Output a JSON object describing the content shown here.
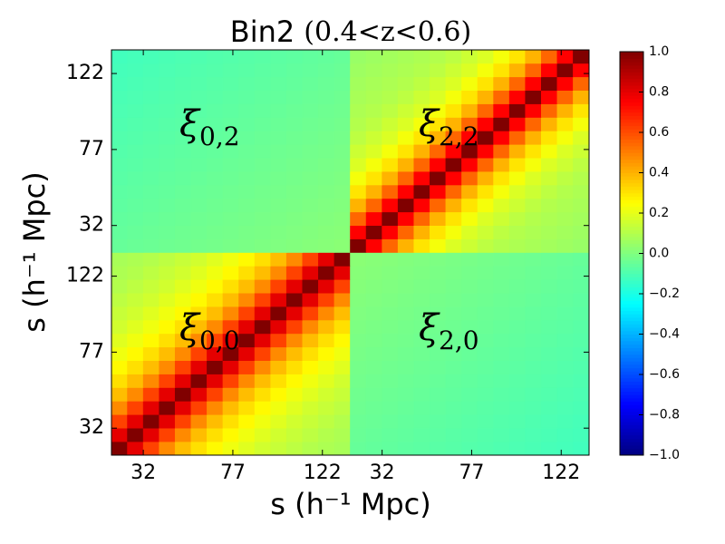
{
  "chart_data": {
    "type": "heatmap",
    "title": "Bin2",
    "title_math": "(0.4<z<0.6)",
    "xlabel": "s (h⁻¹ Mpc)",
    "ylabel": "s (h⁻¹ Mpc)",
    "cmap": "jet",
    "clim": [
      -1,
      1
    ],
    "xlim": [
      16,
      256
    ],
    "ylim": [
      16,
      256
    ],
    "xbins": [
      16,
      24,
      32,
      40,
      48,
      56,
      64,
      72,
      80,
      88,
      96,
      104,
      112,
      120,
      128,
      136,
      144,
      152,
      160,
      168,
      176,
      184,
      192,
      200,
      208,
      216,
      224,
      232,
      240,
      248,
      256
    ],
    "ybins": [
      16,
      24,
      32,
      40,
      48,
      56,
      64,
      72,
      80,
      88,
      96,
      104,
      112,
      120,
      128,
      136,
      144,
      152,
      160,
      168,
      176,
      184,
      192,
      200,
      208,
      216,
      224,
      232,
      240,
      248,
      256
    ],
    "xticks": [
      32,
      77,
      122,
      {
        "value": 152,
        "label": "32"
      },
      {
        "value": 197,
        "label": "77"
      },
      {
        "value": 242,
        "label": "122"
      }
    ],
    "yticks": [
      32,
      77,
      122,
      {
        "value": 152,
        "label": "32"
      },
      {
        "value": 197,
        "label": "77"
      },
      {
        "value": 242,
        "label": "122"
      }
    ],
    "colorbar_ticks": [
      {
        "value": 1,
        "label": "1.0"
      },
      {
        "value": 0.8,
        "label": "0.8"
      },
      {
        "value": 0.6,
        "label": "0.6"
      },
      {
        "value": 0.4,
        "label": "0.4"
      },
      {
        "value": 0.2,
        "label": "0.2"
      },
      {
        "value": 0,
        "label": "0.0"
      },
      {
        "value": -0.2,
        "label": "−0.2"
      },
      {
        "value": -0.4,
        "label": "−0.4"
      },
      {
        "value": -0.6,
        "label": "−0.6"
      },
      {
        "value": -0.8,
        "label": "−0.8"
      },
      {
        "value": -1,
        "label": "−1.0"
      }
    ],
    "annotations": [
      {
        "symbol": "ξ",
        "subscript": "0,2"
      },
      {
        "symbol": "ξ",
        "subscript": "2,2"
      },
      {
        "symbol": "ξ",
        "subscript": "0,0"
      },
      {
        "symbol": "ξ",
        "subscript": "2,0"
      }
    ],
    "z": [
      [
        1,
        0.8,
        0.62,
        0.48,
        0.38,
        0.31,
        0.26,
        0.22,
        0.19,
        0.16,
        0.14,
        0.12,
        0.1,
        0.09,
        0.08,
        -0.05,
        -0.055,
        -0.06,
        -0.065,
        -0.07,
        -0.075,
        -0.08,
        -0.085,
        -0.09,
        -0.095,
        -0.1,
        -0.105,
        -0.11,
        -0.115,
        -0.12
      ],
      [
        0.8,
        1,
        0.8,
        0.62,
        0.48,
        0.38,
        0.31,
        0.26,
        0.22,
        0.19,
        0.16,
        0.14,
        0.12,
        0.1,
        0.09,
        -0.045,
        -0.05,
        -0.055,
        -0.06,
        -0.065,
        -0.07,
        -0.075,
        -0.08,
        -0.085,
        -0.09,
        -0.095,
        -0.1,
        -0.105,
        -0.11,
        -0.115
      ],
      [
        0.62,
        0.8,
        1,
        0.8,
        0.62,
        0.48,
        0.38,
        0.31,
        0.26,
        0.22,
        0.19,
        0.16,
        0.14,
        0.12,
        0.1,
        -0.04,
        -0.045,
        -0.05,
        -0.055,
        -0.06,
        -0.065,
        -0.07,
        -0.075,
        -0.08,
        -0.085,
        -0.09,
        -0.095,
        -0.1,
        -0.105,
        -0.11
      ],
      [
        0.48,
        0.62,
        0.8,
        1,
        0.8,
        0.62,
        0.48,
        0.38,
        0.31,
        0.26,
        0.22,
        0.19,
        0.16,
        0.14,
        0.12,
        -0.035,
        -0.04,
        -0.045,
        -0.05,
        -0.055,
        -0.06,
        -0.065,
        -0.07,
        -0.075,
        -0.08,
        -0.085,
        -0.09,
        -0.095,
        -0.1,
        -0.105
      ],
      [
        0.38,
        0.48,
        0.62,
        0.8,
        1,
        0.8,
        0.62,
        0.48,
        0.38,
        0.31,
        0.26,
        0.22,
        0.19,
        0.16,
        0.14,
        -0.03,
        -0.035,
        -0.04,
        -0.045,
        -0.05,
        -0.055,
        -0.06,
        -0.065,
        -0.07,
        -0.075,
        -0.08,
        -0.085,
        -0.09,
        -0.095,
        -0.1
      ],
      [
        0.31,
        0.38,
        0.48,
        0.62,
        0.8,
        1,
        0.8,
        0.62,
        0.48,
        0.38,
        0.31,
        0.26,
        0.22,
        0.19,
        0.16,
        -0.025,
        -0.03,
        -0.035,
        -0.04,
        -0.045,
        -0.05,
        -0.055,
        -0.06,
        -0.065,
        -0.07,
        -0.075,
        -0.08,
        -0.085,
        -0.09,
        -0.095
      ],
      [
        0.26,
        0.31,
        0.38,
        0.48,
        0.62,
        0.8,
        1,
        0.8,
        0.62,
        0.48,
        0.38,
        0.31,
        0.26,
        0.22,
        0.19,
        -0.02,
        -0.025,
        -0.03,
        -0.035,
        -0.04,
        -0.045,
        -0.05,
        -0.055,
        -0.06,
        -0.065,
        -0.07,
        -0.075,
        -0.08,
        -0.085,
        -0.09
      ],
      [
        0.22,
        0.26,
        0.31,
        0.38,
        0.48,
        0.62,
        0.8,
        1,
        0.8,
        0.62,
        0.48,
        0.38,
        0.31,
        0.26,
        0.22,
        -0.015,
        -0.02,
        -0.025,
        -0.03,
        -0.035,
        -0.04,
        -0.045,
        -0.05,
        -0.055,
        -0.06,
        -0.065,
        -0.07,
        -0.075,
        -0.08,
        -0.085
      ],
      [
        0.19,
        0.22,
        0.26,
        0.31,
        0.38,
        0.48,
        0.62,
        0.8,
        1,
        0.8,
        0.62,
        0.48,
        0.38,
        0.31,
        0.26,
        -0.01,
        -0.015,
        -0.02,
        -0.025,
        -0.03,
        -0.035,
        -0.04,
        -0.045,
        -0.05,
        -0.055,
        -0.06,
        -0.065,
        -0.07,
        -0.075,
        -0.08
      ],
      [
        0.16,
        0.19,
        0.22,
        0.26,
        0.31,
        0.38,
        0.48,
        0.62,
        0.8,
        1,
        0.8,
        0.62,
        0.48,
        0.38,
        0.31,
        -0.005,
        -0.01,
        -0.015,
        -0.02,
        -0.025,
        -0.03,
        -0.035,
        -0.04,
        -0.045,
        -0.05,
        -0.055,
        -0.06,
        -0.065,
        -0.07,
        -0.075
      ],
      [
        0.14,
        0.16,
        0.19,
        0.22,
        0.26,
        0.31,
        0.38,
        0.48,
        0.62,
        0.8,
        1,
        0.8,
        0.62,
        0.48,
        0.38,
        0,
        -0.005,
        -0.01,
        -0.015,
        -0.02,
        -0.025,
        -0.03,
        -0.035,
        -0.04,
        -0.045,
        -0.05,
        -0.055,
        -0.06,
        -0.065,
        -0.07
      ],
      [
        0.12,
        0.14,
        0.16,
        0.19,
        0.22,
        0.26,
        0.31,
        0.38,
        0.48,
        0.62,
        0.8,
        1,
        0.8,
        0.62,
        0.48,
        0.005,
        0,
        -0.005,
        -0.01,
        -0.015,
        -0.02,
        -0.025,
        -0.03,
        -0.035,
        -0.04,
        -0.045,
        -0.05,
        -0.055,
        -0.06,
        -0.065
      ],
      [
        0.1,
        0.12,
        0.14,
        0.16,
        0.19,
        0.22,
        0.26,
        0.31,
        0.38,
        0.48,
        0.62,
        0.8,
        1,
        0.8,
        0.62,
        0.01,
        0.005,
        0,
        -0.005,
        -0.01,
        -0.015,
        -0.02,
        -0.025,
        -0.03,
        -0.035,
        -0.04,
        -0.045,
        -0.05,
        -0.055,
        -0.06
      ],
      [
        0.09,
        0.1,
        0.12,
        0.14,
        0.16,
        0.19,
        0.22,
        0.26,
        0.31,
        0.38,
        0.48,
        0.62,
        0.8,
        1,
        0.8,
        0.015,
        0.01,
        0.005,
        0,
        -0.005,
        -0.01,
        -0.015,
        -0.02,
        -0.025,
        -0.03,
        -0.035,
        -0.04,
        -0.045,
        -0.05,
        -0.055
      ],
      [
        0.08,
        0.09,
        0.1,
        0.12,
        0.14,
        0.16,
        0.19,
        0.22,
        0.26,
        0.31,
        0.38,
        0.48,
        0.62,
        0.8,
        1,
        0.02,
        0.015,
        0.01,
        0.005,
        0,
        -0.005,
        -0.01,
        -0.015,
        -0.02,
        -0.025,
        -0.03,
        -0.035,
        -0.04,
        -0.045,
        -0.05
      ],
      [
        -0.05,
        -0.045,
        -0.04,
        -0.035,
        -0.03,
        -0.025,
        -0.02,
        -0.015,
        -0.01,
        -0.005,
        0,
        0.005,
        0.01,
        0.015,
        0.02,
        1,
        0.75,
        0.55,
        0.4,
        0.3,
        0.23,
        0.18,
        0.15,
        0.12,
        0.1,
        0.09,
        0.08,
        0.07,
        0.06,
        0.05
      ],
      [
        -0.055,
        -0.05,
        -0.045,
        -0.04,
        -0.035,
        -0.03,
        -0.025,
        -0.02,
        -0.015,
        -0.01,
        -0.005,
        0,
        0.005,
        0.01,
        0.015,
        0.75,
        1,
        0.75,
        0.55,
        0.4,
        0.3,
        0.23,
        0.18,
        0.15,
        0.12,
        0.1,
        0.09,
        0.08,
        0.07,
        0.06
      ],
      [
        -0.06,
        -0.055,
        -0.05,
        -0.045,
        -0.04,
        -0.035,
        -0.03,
        -0.025,
        -0.02,
        -0.015,
        -0.01,
        -0.005,
        0,
        0.005,
        0.01,
        0.55,
        0.75,
        1,
        0.75,
        0.55,
        0.4,
        0.3,
        0.23,
        0.18,
        0.15,
        0.12,
        0.1,
        0.09,
        0.08,
        0.07
      ],
      [
        -0.065,
        -0.06,
        -0.055,
        -0.05,
        -0.045,
        -0.04,
        -0.035,
        -0.03,
        -0.025,
        -0.02,
        -0.015,
        -0.01,
        -0.005,
        0,
        0.005,
        0.4,
        0.55,
        0.75,
        1,
        0.75,
        0.55,
        0.4,
        0.3,
        0.23,
        0.18,
        0.15,
        0.12,
        0.1,
        0.09,
        0.08
      ],
      [
        -0.07,
        -0.065,
        -0.06,
        -0.055,
        -0.05,
        -0.045,
        -0.04,
        -0.035,
        -0.03,
        -0.025,
        -0.02,
        -0.015,
        -0.01,
        -0.005,
        0,
        0.3,
        0.4,
        0.55,
        0.75,
        1,
        0.75,
        0.55,
        0.4,
        0.3,
        0.23,
        0.18,
        0.15,
        0.12,
        0.1,
        0.09
      ],
      [
        -0.075,
        -0.07,
        -0.065,
        -0.06,
        -0.055,
        -0.05,
        -0.045,
        -0.04,
        -0.035,
        -0.03,
        -0.025,
        -0.02,
        -0.015,
        -0.01,
        -0.005,
        0.23,
        0.3,
        0.4,
        0.55,
        0.75,
        1,
        0.75,
        0.55,
        0.4,
        0.3,
        0.23,
        0.18,
        0.15,
        0.12,
        0.1
      ],
      [
        -0.08,
        -0.075,
        -0.07,
        -0.065,
        -0.06,
        -0.055,
        -0.05,
        -0.045,
        -0.04,
        -0.035,
        -0.03,
        -0.025,
        -0.02,
        -0.015,
        -0.01,
        0.18,
        0.23,
        0.3,
        0.4,
        0.55,
        0.75,
        1,
        0.75,
        0.55,
        0.4,
        0.3,
        0.23,
        0.18,
        0.15,
        0.12
      ],
      [
        -0.085,
        -0.08,
        -0.075,
        -0.07,
        -0.065,
        -0.06,
        -0.055,
        -0.05,
        -0.045,
        -0.04,
        -0.035,
        -0.03,
        -0.025,
        -0.02,
        -0.015,
        0.15,
        0.18,
        0.23,
        0.3,
        0.4,
        0.55,
        0.75,
        1,
        0.75,
        0.55,
        0.4,
        0.3,
        0.23,
        0.18,
        0.15
      ],
      [
        -0.09,
        -0.085,
        -0.08,
        -0.075,
        -0.07,
        -0.065,
        -0.06,
        -0.055,
        -0.05,
        -0.045,
        -0.04,
        -0.035,
        -0.03,
        -0.025,
        -0.02,
        0.12,
        0.15,
        0.18,
        0.23,
        0.3,
        0.4,
        0.55,
        0.75,
        1,
        0.75,
        0.55,
        0.4,
        0.3,
        0.23,
        0.18
      ],
      [
        -0.095,
        -0.09,
        -0.085,
        -0.08,
        -0.075,
        -0.07,
        -0.065,
        -0.06,
        -0.055,
        -0.05,
        -0.045,
        -0.04,
        -0.035,
        -0.03,
        -0.025,
        0.1,
        0.12,
        0.15,
        0.18,
        0.23,
        0.3,
        0.4,
        0.55,
        0.75,
        1,
        0.75,
        0.55,
        0.4,
        0.3,
        0.23
      ],
      [
        -0.1,
        -0.095,
        -0.09,
        -0.085,
        -0.08,
        -0.075,
        -0.07,
        -0.065,
        -0.06,
        -0.055,
        -0.05,
        -0.045,
        -0.04,
        -0.035,
        -0.03,
        0.09,
        0.1,
        0.12,
        0.15,
        0.18,
        0.23,
        0.3,
        0.4,
        0.55,
        0.75,
        1,
        0.75,
        0.55,
        0.4,
        0.3
      ],
      [
        -0.105,
        -0.1,
        -0.095,
        -0.09,
        -0.085,
        -0.08,
        -0.075,
        -0.07,
        -0.065,
        -0.06,
        -0.055,
        -0.05,
        -0.045,
        -0.04,
        -0.035,
        0.08,
        0.09,
        0.1,
        0.12,
        0.15,
        0.18,
        0.23,
        0.3,
        0.4,
        0.55,
        0.75,
        1,
        0.75,
        0.55,
        0.4
      ],
      [
        -0.11,
        -0.105,
        -0.1,
        -0.095,
        -0.09,
        -0.085,
        -0.08,
        -0.075,
        -0.07,
        -0.065,
        -0.06,
        -0.055,
        -0.05,
        -0.045,
        -0.04,
        0.07,
        0.08,
        0.09,
        0.1,
        0.12,
        0.15,
        0.18,
        0.23,
        0.3,
        0.4,
        0.55,
        0.75,
        1,
        0.75,
        0.55
      ],
      [
        -0.115,
        -0.11,
        -0.105,
        -0.1,
        -0.095,
        -0.09,
        -0.085,
        -0.08,
        -0.075,
        -0.07,
        -0.065,
        -0.06,
        -0.055,
        -0.05,
        -0.045,
        0.06,
        0.07,
        0.08,
        0.09,
        0.1,
        0.12,
        0.15,
        0.18,
        0.23,
        0.3,
        0.4,
        0.55,
        0.75,
        1,
        0.75
      ],
      [
        -0.12,
        -0.115,
        -0.11,
        -0.105,
        -0.1,
        -0.095,
        -0.09,
        -0.085,
        -0.08,
        -0.075,
        -0.07,
        -0.065,
        -0.06,
        -0.055,
        -0.05,
        0.05,
        0.06,
        0.07,
        0.08,
        0.09,
        0.1,
        0.12,
        0.15,
        0.18,
        0.23,
        0.3,
        0.4,
        0.55,
        0.75,
        1
      ]
    ]
  }
}
